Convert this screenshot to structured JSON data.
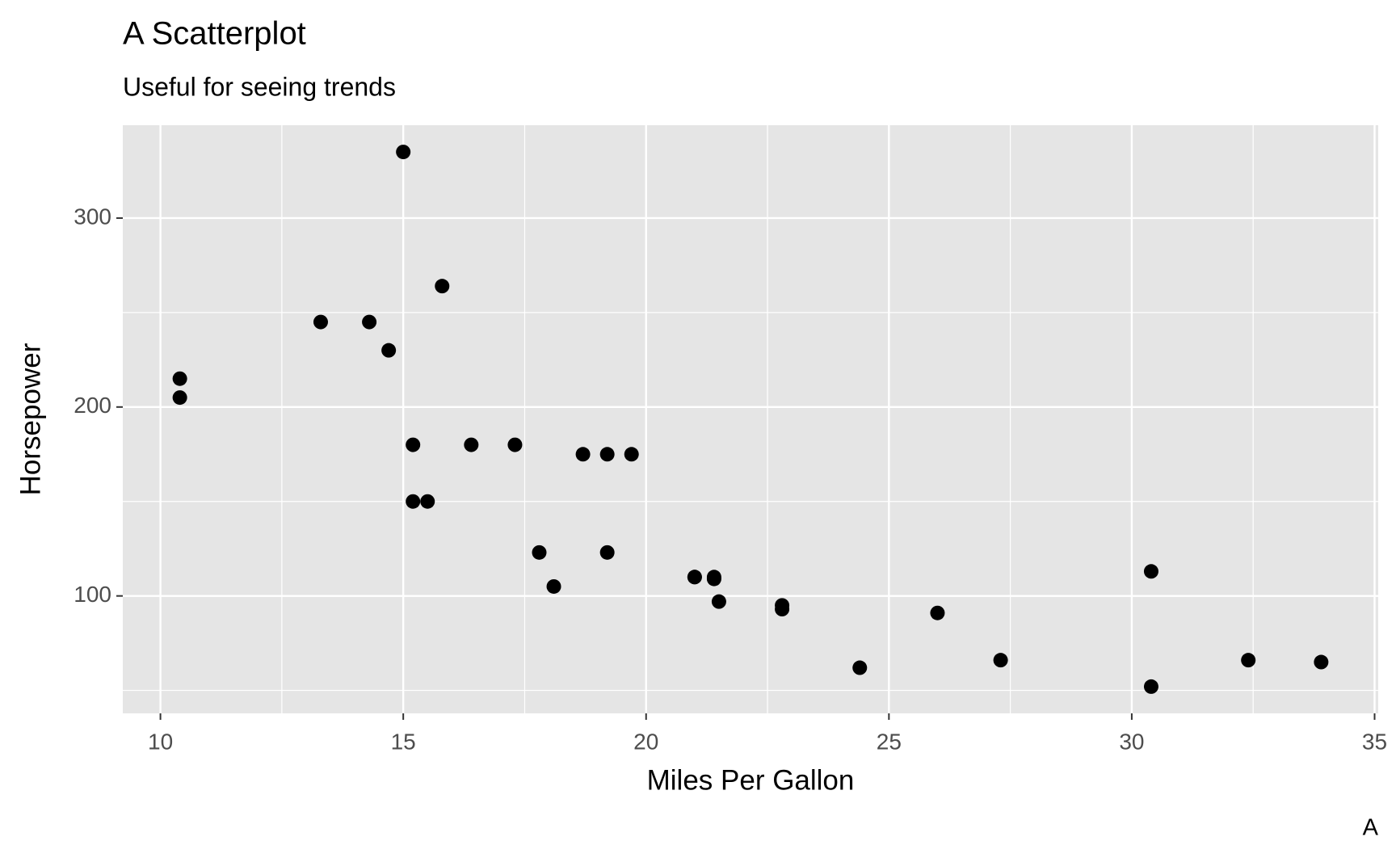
{
  "chart_data": {
    "type": "scatter",
    "title": "A Scatterplot",
    "subtitle": "Useful for seeing trends",
    "x_label": "Miles Per Gallon",
    "y_label": "Horsepower",
    "caption": "A",
    "color": "#000000",
    "x": [
      21,
      21,
      22.8,
      21.4,
      18.7,
      18.1,
      14.3,
      24.4,
      22.8,
      19.2,
      17.8,
      16.4,
      17.3,
      15.2,
      10.4,
      10.4,
      14.7,
      32.4,
      30.4,
      33.9,
      21.5,
      15.5,
      15.2,
      13.3,
      19.2,
      27.3,
      26,
      30.4,
      15.8,
      19.7,
      15,
      21.4
    ],
    "values": [
      110,
      110,
      93,
      110,
      175,
      105,
      245,
      62,
      95,
      123,
      123,
      180,
      180,
      180,
      205,
      215,
      230,
      66,
      52,
      65,
      97,
      150,
      150,
      245,
      175,
      66,
      91,
      113,
      264,
      175,
      335,
      109
    ],
    "xlim": [
      9.225,
      35.075
    ],
    "ylim": [
      37.85,
      349.15
    ],
    "xticks": [
      10,
      15,
      20,
      25,
      30,
      35
    ],
    "yticks": [
      100,
      200,
      300
    ],
    "xminorticks": [
      12.5,
      17.5,
      22.5,
      27.5,
      32.5
    ],
    "yminorticks": [
      50,
      150,
      250
    ],
    "grid": true
  }
}
